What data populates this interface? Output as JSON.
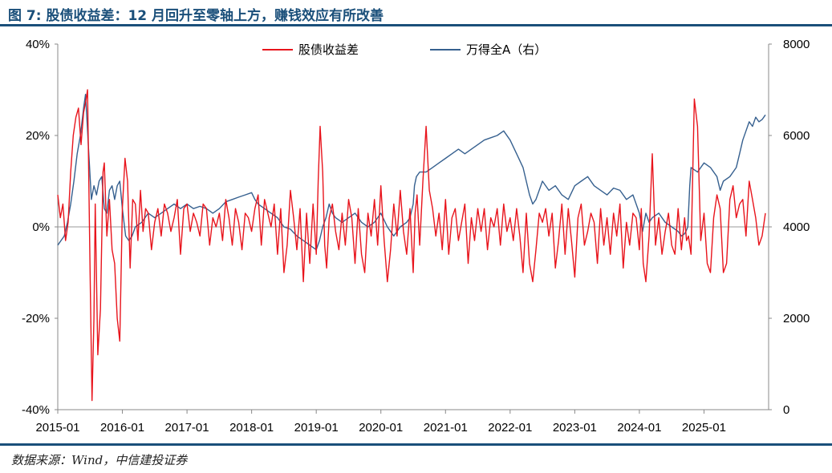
{
  "title": "图 7: 股债收益差：12 月回升至零轴上方，赚钱效应有所改善",
  "source": "数据来源：Wind，中信建投证券",
  "chart_data": {
    "type": "line",
    "title": "股债收益差：12 月回升至零轴上方，赚钱效应有所改善",
    "xlabel": "",
    "ylabel_left": "股债收益差 (%)",
    "ylabel_right": "万得全A",
    "x_ticks": [
      "2015-01",
      "2016-01",
      "2017-01",
      "2018-01",
      "2019-01",
      "2020-01",
      "2021-01",
      "2022-01",
      "2023-01",
      "2024-01",
      "2025-01"
    ],
    "y_left_ticks": [
      "40%",
      "20%",
      "0%",
      "-20%",
      "-40%"
    ],
    "y_right_ticks": [
      "8000",
      "6000",
      "4000",
      "2000",
      "0"
    ],
    "ylim_left": [
      -40,
      40
    ],
    "ylim_right": [
      0,
      8000
    ],
    "grid": false,
    "legend_position": "top-center",
    "colors": {
      "spread": "#e8141c",
      "index": "#36608f",
      "accent": "#1a4f7a"
    },
    "series": [
      {
        "name": "股债收益差",
        "axis": "left",
        "x": [
          2015.0,
          2015.04,
          2015.08,
          2015.12,
          2015.16,
          2015.2,
          2015.24,
          2015.28,
          2015.32,
          2015.36,
          2015.4,
          2015.44,
          2015.46,
          2015.5,
          2015.53,
          2015.56,
          2015.58,
          2015.62,
          2015.66,
          2015.7,
          2015.72,
          2015.76,
          2015.8,
          2015.84,
          2015.88,
          2015.92,
          2015.96,
          2016.0,
          2016.04,
          2016.08,
          2016.12,
          2016.16,
          2016.2,
          2016.24,
          2016.28,
          2016.32,
          2016.36,
          2016.4,
          2016.45,
          2016.5,
          2016.55,
          2016.6,
          2016.65,
          2016.7,
          2016.75,
          2016.8,
          2016.85,
          2016.9,
          2016.95,
          2017.0,
          2017.05,
          2017.1,
          2017.15,
          2017.2,
          2017.25,
          2017.3,
          2017.35,
          2017.4,
          2017.45,
          2017.5,
          2017.55,
          2017.6,
          2017.65,
          2017.7,
          2017.75,
          2017.8,
          2017.85,
          2017.9,
          2017.95,
          2018.0,
          2018.05,
          2018.1,
          2018.15,
          2018.2,
          2018.25,
          2018.3,
          2018.35,
          2018.4,
          2018.45,
          2018.5,
          2018.55,
          2018.6,
          2018.65,
          2018.7,
          2018.75,
          2018.8,
          2018.85,
          2018.9,
          2018.95,
          2019.0,
          2019.03,
          2019.06,
          2019.1,
          2019.13,
          2019.16,
          2019.2,
          2019.25,
          2019.3,
          2019.35,
          2019.4,
          2019.45,
          2019.5,
          2019.55,
          2019.6,
          2019.65,
          2019.7,
          2019.75,
          2019.8,
          2019.85,
          2019.9,
          2019.95,
          2020.0,
          2020.05,
          2020.1,
          2020.15,
          2020.2,
          2020.25,
          2020.3,
          2020.35,
          2020.4,
          2020.45,
          2020.5,
          2020.53,
          2020.56,
          2020.6,
          2020.65,
          2020.7,
          2020.75,
          2020.8,
          2020.85,
          2020.9,
          2020.95,
          2021.0,
          2021.05,
          2021.1,
          2021.15,
          2021.2,
          2021.25,
          2021.3,
          2021.35,
          2021.4,
          2021.45,
          2021.5,
          2021.55,
          2021.6,
          2021.65,
          2021.7,
          2021.75,
          2021.8,
          2021.85,
          2021.9,
          2021.95,
          2022.0,
          2022.05,
          2022.1,
          2022.15,
          2022.2,
          2022.25,
          2022.3,
          2022.35,
          2022.4,
          2022.45,
          2022.5,
          2022.55,
          2022.6,
          2022.65,
          2022.7,
          2022.75,
          2022.8,
          2022.85,
          2022.9,
          2022.95,
          2023.0,
          2023.05,
          2023.1,
          2023.15,
          2023.2,
          2023.25,
          2023.3,
          2023.35,
          2023.4,
          2023.45,
          2023.5,
          2023.55,
          2023.6,
          2023.65,
          2023.7,
          2023.75,
          2023.8,
          2023.85,
          2023.9,
          2023.95,
          2024.0,
          2024.03,
          2024.06,
          2024.1,
          2024.15,
          2024.2,
          2024.25,
          2024.3,
          2024.35,
          2024.4,
          2024.45,
          2024.5,
          2024.55,
          2024.6,
          2024.65,
          2024.7,
          2024.73,
          2024.76,
          2024.8,
          2024.85,
          2024.9,
          2024.95,
          2025.0,
          2025.05,
          2025.1,
          2025.15,
          2025.2,
          2025.25,
          2025.3,
          2025.35,
          2025.4,
          2025.45,
          2025.5,
          2025.55,
          2025.6,
          2025.65,
          2025.7,
          2025.75,
          2025.8,
          2025.85,
          2025.9,
          2025.95
        ],
        "values": [
          7,
          2,
          5,
          -3,
          1,
          12,
          20,
          24,
          26,
          18,
          25,
          28,
          30,
          -10,
          -38,
          -20,
          5,
          -28,
          -18,
          12,
          14,
          -2,
          6,
          -5,
          -8,
          -20,
          -25,
          4,
          15,
          10,
          -9,
          6,
          5,
          -3,
          8,
          -1,
          4,
          3,
          -5,
          1,
          4,
          -2,
          5,
          3,
          -1,
          2,
          6,
          -6,
          4,
          5,
          -1,
          3,
          1,
          -2,
          5,
          4,
          -4,
          2,
          0,
          3,
          -3,
          6,
          2,
          -4,
          4,
          1,
          -5,
          3,
          2,
          -1,
          4,
          7,
          -4,
          6,
          3,
          0,
          5,
          -6,
          4,
          -10,
          -4,
          8,
          2,
          -5,
          4,
          -12,
          3,
          -8,
          5,
          -6,
          10,
          22,
          12,
          -4,
          -9,
          2,
          5,
          -1,
          -5,
          3,
          -4,
          6,
          2,
          -8,
          4,
          -6,
          -10,
          3,
          -2,
          6,
          -4,
          9,
          -3,
          -12,
          -5,
          5,
          -2,
          8,
          -1,
          -6,
          4,
          -10,
          3,
          7,
          -4,
          10,
          22,
          8,
          4,
          -2,
          3,
          -5,
          6,
          -6,
          2,
          4,
          -3,
          1,
          5,
          -8,
          2,
          -3,
          4,
          -1,
          4,
          -5,
          2,
          0,
          4,
          -4,
          5,
          -1,
          2,
          -3,
          4,
          -2,
          -10,
          3,
          -8,
          -12,
          -5,
          3,
          1,
          4,
          -2,
          3,
          -9,
          -3,
          5,
          -6,
          4,
          -3,
          -11,
          2,
          5,
          -4,
          -1,
          3,
          1,
          -8,
          4,
          -4,
          2,
          -6,
          3,
          -2,
          5,
          -9,
          1,
          -4,
          3,
          2,
          -5,
          4,
          -8,
          -12,
          -2,
          16,
          -4,
          2,
          -6,
          -1,
          3,
          -4,
          -6,
          4,
          -5,
          2,
          -3,
          -2,
          -6,
          28,
          22,
          -3,
          3,
          -8,
          -10,
          2,
          7,
          4,
          -10,
          -8,
          6,
          9,
          2,
          5,
          6,
          -2,
          10,
          6,
          2,
          -4,
          -2,
          3
        ]
      },
      {
        "name": "万得全A（右）",
        "axis": "right",
        "x": [
          2015.0,
          2015.05,
          2015.1,
          2015.15,
          2015.2,
          2015.25,
          2015.3,
          2015.35,
          2015.4,
          2015.43,
          2015.45,
          2015.48,
          2015.52,
          2015.56,
          2015.6,
          2015.64,
          2015.68,
          2015.72,
          2015.76,
          2015.8,
          2015.84,
          2015.88,
          2015.92,
          2015.96,
          2016.0,
          2016.05,
          2016.1,
          2016.15,
          2016.2,
          2016.3,
          2016.4,
          2016.5,
          2016.6,
          2016.7,
          2016.8,
          2016.9,
          2017.0,
          2017.1,
          2017.2,
          2017.3,
          2017.4,
          2017.5,
          2017.6,
          2017.7,
          2017.8,
          2017.9,
          2018.0,
          2018.05,
          2018.1,
          2018.2,
          2018.3,
          2018.4,
          2018.5,
          2018.6,
          2018.7,
          2018.8,
          2018.9,
          2019.0,
          2019.05,
          2019.1,
          2019.15,
          2019.2,
          2019.25,
          2019.3,
          2019.4,
          2019.5,
          2019.6,
          2019.7,
          2019.8,
          2019.9,
          2020.0,
          2020.1,
          2020.15,
          2020.2,
          2020.3,
          2020.4,
          2020.45,
          2020.5,
          2020.52,
          2020.55,
          2020.6,
          2020.7,
          2020.8,
          2020.9,
          2021.0,
          2021.1,
          2021.2,
          2021.3,
          2021.4,
          2021.5,
          2021.6,
          2021.7,
          2021.8,
          2021.9,
          2022.0,
          2022.1,
          2022.2,
          2022.3,
          2022.35,
          2022.4,
          2022.5,
          2022.6,
          2022.7,
          2022.8,
          2022.9,
          2023.0,
          2023.1,
          2023.2,
          2023.3,
          2023.4,
          2023.5,
          2023.6,
          2023.7,
          2023.8,
          2023.9,
          2024.0,
          2024.05,
          2024.1,
          2024.15,
          2024.2,
          2024.3,
          2024.4,
          2024.5,
          2024.6,
          2024.65,
          2024.7,
          2024.72,
          2024.75,
          2024.78,
          2024.8,
          2024.9,
          2025.0,
          2025.1,
          2025.2,
          2025.25,
          2025.3,
          2025.4,
          2025.5,
          2025.55,
          2025.6,
          2025.65,
          2025.7,
          2025.75,
          2025.8,
          2025.85,
          2025.9,
          2025.95
        ],
        "values": [
          3600,
          3700,
          3800,
          4100,
          4500,
          5000,
          5600,
          6000,
          6600,
          6900,
          6400,
          5600,
          4600,
          4900,
          4700,
          5000,
          5100,
          4400,
          4300,
          4800,
          4900,
          4600,
          4900,
          5000,
          4400,
          3800,
          3700,
          3800,
          4000,
          4100,
          4300,
          4200,
          4300,
          4400,
          4500,
          4400,
          4500,
          4400,
          4450,
          4400,
          4300,
          4400,
          4550,
          4600,
          4650,
          4700,
          4750,
          4600,
          4500,
          4400,
          4300,
          4200,
          4000,
          3950,
          3800,
          3700,
          3600,
          3500,
          3700,
          4000,
          4200,
          4500,
          4300,
          4200,
          4100,
          4200,
          4300,
          4100,
          4000,
          4100,
          4300,
          4000,
          3900,
          3800,
          4000,
          4100,
          4200,
          4500,
          4900,
          5100,
          5200,
          5200,
          5300,
          5400,
          5500,
          5600,
          5700,
          5600,
          5700,
          5800,
          5900,
          5950,
          6000,
          6100,
          5900,
          5600,
          5300,
          4700,
          4500,
          4600,
          5000,
          4800,
          4900,
          4700,
          4600,
          4900,
          5000,
          5100,
          4900,
          4800,
          4700,
          4850,
          4800,
          4600,
          4700,
          4300,
          3900,
          4300,
          4100,
          4200,
          4300,
          4100,
          4000,
          3900,
          3800,
          3850,
          3900,
          4000,
          4900,
          5300,
          5200,
          5400,
          5300,
          5100,
          4800,
          5000,
          5100,
          5300,
          5600,
          5900,
          6100,
          6300,
          6200,
          6400,
          6300,
          6350,
          6450
        ]
      }
    ]
  }
}
